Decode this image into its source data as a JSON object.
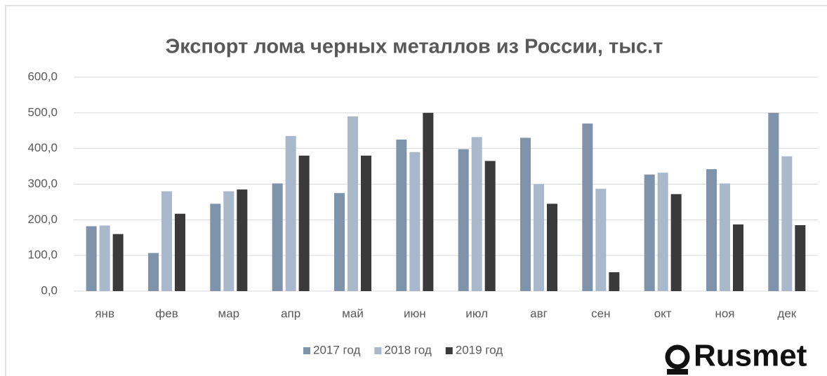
{
  "chart_data": {
    "type": "bar",
    "title": "Экспорт лома черных металлов из России, тыс.т",
    "categories": [
      "янв",
      "фев",
      "мар",
      "апр",
      "май",
      "июн",
      "июл",
      "авг",
      "сен",
      "окт",
      "ноя",
      "дек"
    ],
    "series": [
      {
        "name": "2017 год",
        "color": "#7f93ab",
        "values": [
          182,
          107,
          245,
          302,
          275,
          425,
          398,
          430,
          470,
          327,
          342,
          500
        ]
      },
      {
        "name": "2018 год",
        "color": "#aab8cc",
        "values": [
          184,
          280,
          280,
          435,
          490,
          390,
          432,
          300,
          287,
          332,
          302,
          378
        ]
      },
      {
        "name": "2019 год",
        "color": "#3a3a3a",
        "values": [
          160,
          217,
          285,
          380,
          380,
          500,
          365,
          245,
          53,
          272,
          187,
          185
        ]
      }
    ],
    "ylim": [
      0,
      600
    ],
    "yticks": [
      {
        "value": 0,
        "label": "0,0"
      },
      {
        "value": 100,
        "label": "100,0"
      },
      {
        "value": 200,
        "label": "200,0"
      },
      {
        "value": 300,
        "label": "300,0"
      },
      {
        "value": 400,
        "label": "400,0"
      },
      {
        "value": 500,
        "label": "500,0"
      },
      {
        "value": 600,
        "label": "600,0"
      }
    ],
    "grid": true,
    "legend": "bottom",
    "logo": "Rusmet"
  }
}
